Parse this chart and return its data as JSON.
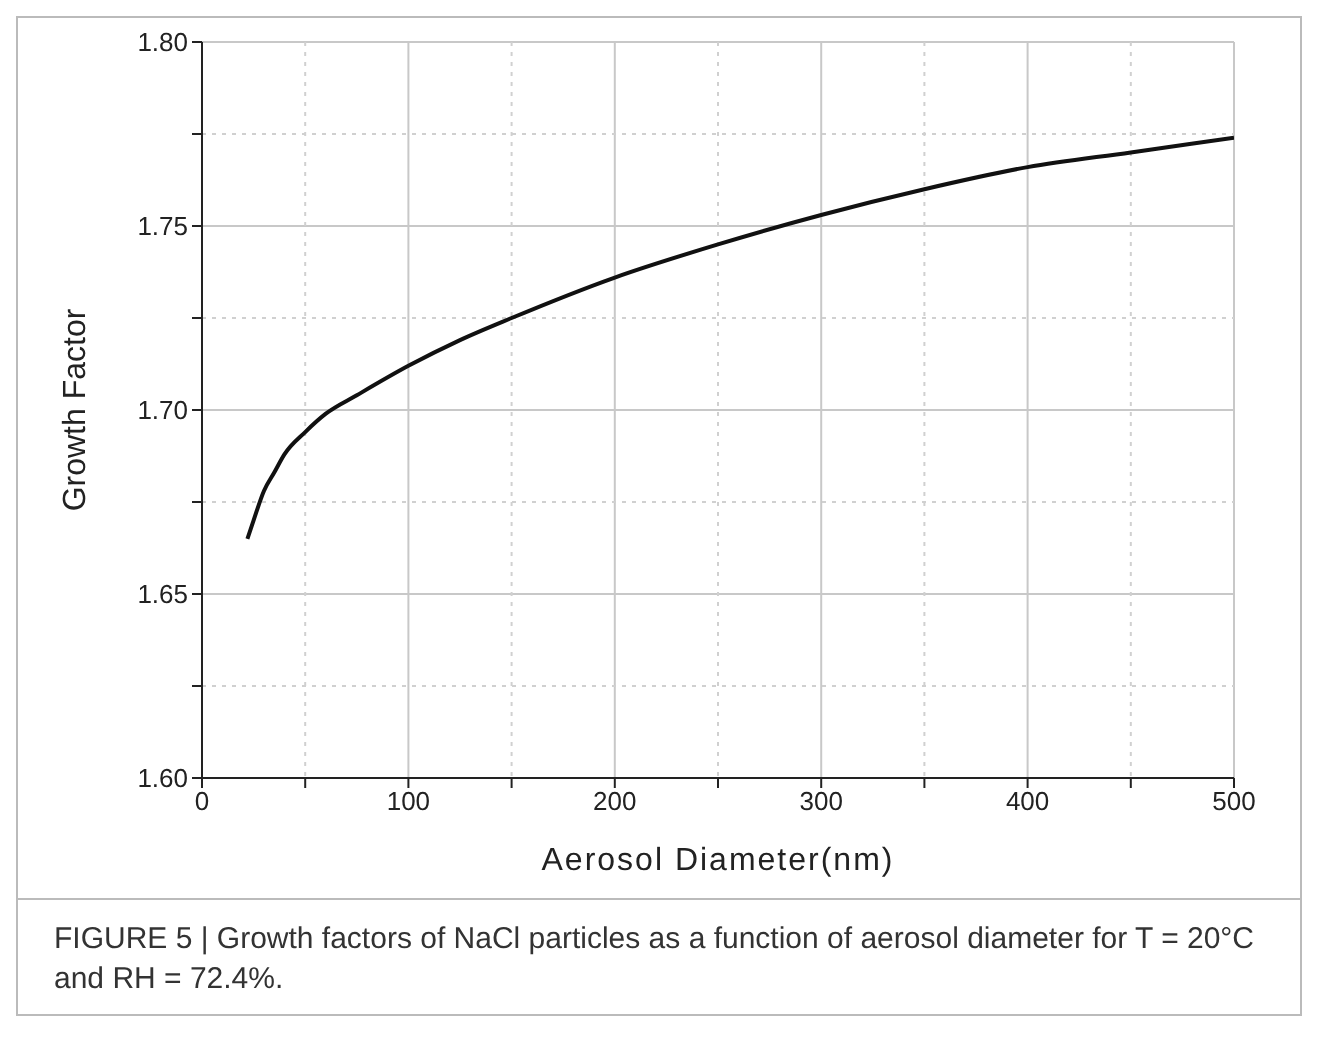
{
  "chart_data": {
    "type": "line",
    "xlabel": "Aerosol Diameter(nm)",
    "ylabel": "Growth Factor",
    "annotations": [
      "FIGURE 5 | Growth factors of NaCl particles as a function of aerosol diameter for T = 20°C and RH = 72.4%."
    ],
    "x": [
      22,
      25,
      30,
      35,
      40,
      50,
      60,
      75,
      100,
      125,
      150,
      200,
      250,
      300,
      350,
      400,
      450,
      500
    ],
    "series": [
      {
        "color": "#111111",
        "values": [
          1.665,
          1.67,
          1.678,
          1.683,
          1.688,
          1.694,
          1.699,
          1.704,
          1.712,
          1.719,
          1.725,
          1.736,
          1.745,
          1.753,
          1.76,
          1.766,
          1.77,
          1.774
        ]
      }
    ],
    "xlim": [
      0,
      500
    ],
    "ylim": [
      1.6,
      1.8
    ],
    "xticks": [
      0,
      {
        "value": 50,
        "label": null
      },
      100,
      {
        "value": 150,
        "label": null
      },
      200,
      {
        "value": 250,
        "label": null
      },
      300,
      {
        "value": 350,
        "label": null
      },
      400,
      {
        "value": 450,
        "label": null
      },
      500
    ],
    "yticks": [
      {
        "value": 1.6,
        "label": "1.60"
      },
      {
        "value": 1.625,
        "label": null
      },
      {
        "value": 1.65,
        "label": "1.65"
      },
      {
        "value": 1.675,
        "label": null
      },
      {
        "value": 1.7,
        "label": "1.70"
      },
      {
        "value": 1.725,
        "label": null
      },
      {
        "value": 1.75,
        "label": "1.75"
      },
      {
        "value": 1.775,
        "label": null
      },
      {
        "value": 1.8,
        "label": "1.80"
      }
    ],
    "grid": true,
    "marker": "none",
    "line_style": "solid"
  }
}
